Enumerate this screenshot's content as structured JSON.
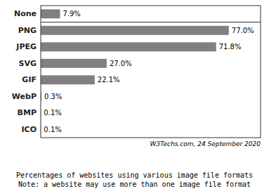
{
  "chart_data": {
    "type": "bar",
    "orientation": "horizontal",
    "title": "Percentages of websites using various image file formats\nNote: a website may use more than one image file format",
    "annotations": [
      "W3Techs.com, 24 September 2020"
    ],
    "categories": [
      "None",
      "PNG",
      "JPEG",
      "SVG",
      "GIF",
      "WebP",
      "BMP",
      "ICO"
    ],
    "values": [
      7.9,
      77.0,
      71.8,
      27.0,
      22.1,
      0.3,
      0.1,
      0.1
    ],
    "value_labels": [
      "7.9%",
      "77.0%",
      "71.8%",
      "27.0%",
      "22.1%",
      "0.3%",
      "0.1%",
      "0.1%"
    ],
    "color": "#808080",
    "xlim": [
      0,
      90
    ],
    "data_labels": true,
    "tick_labels": "y",
    "grid": false
  }
}
